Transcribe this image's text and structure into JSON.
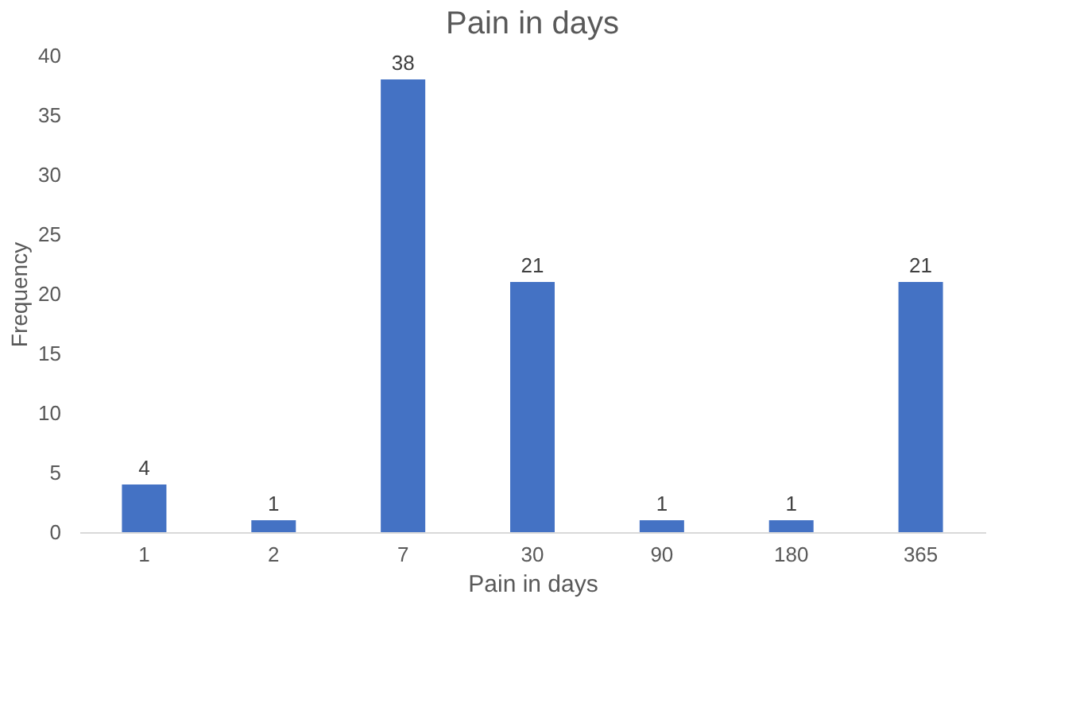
{
  "chart_data": {
    "type": "bar",
    "title": "Pain in days",
    "xlabel": "Pain in days",
    "ylabel": "Frequency",
    "categories": [
      "1",
      "2",
      "7",
      "30",
      "90",
      "180",
      "365"
    ],
    "values": [
      4,
      1,
      38,
      21,
      1,
      1,
      21
    ],
    "color": "#4472c4",
    "ylim": [
      0,
      40
    ],
    "yticks": [
      0,
      5,
      10,
      15,
      20,
      25,
      30,
      35,
      40
    ],
    "grid": false,
    "data_labels": true
  }
}
